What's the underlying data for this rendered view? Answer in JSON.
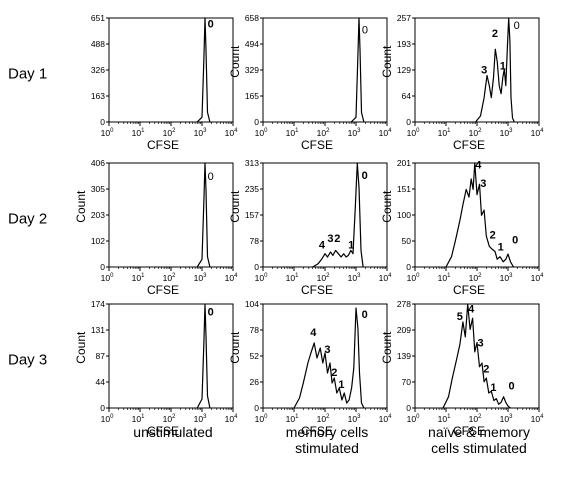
{
  "figure": {
    "row_labels": [
      "Day 1",
      "Day 2",
      "Day 3"
    ],
    "col_labels": [
      [
        "unstimulated"
      ],
      [
        "memory cells",
        "stimulated"
      ],
      [
        "naïve & memory",
        "cells stimulated"
      ]
    ]
  },
  "chart_data": [
    {
      "type": "area",
      "row": 0,
      "col": 0,
      "xlabel": "CFSE",
      "ylabel": "",
      "x_scale": "log",
      "xlim": [
        1,
        10000
      ],
      "x_ticks": [
        [
          "10",
          "0"
        ],
        [
          "10",
          "1"
        ],
        [
          "10",
          "2"
        ],
        [
          "10",
          "3"
        ],
        [
          "10",
          "4"
        ]
      ],
      "ylim": [
        0,
        651
      ],
      "y_ticks": [
        "0",
        "163",
        "326",
        "488",
        "651"
      ],
      "series": [
        {
          "x": [
            700,
            1000,
            1150,
            1250,
            1350,
            1500,
            1800
          ],
          "y": [
            0,
            30,
            400,
            651,
            450,
            60,
            0
          ]
        }
      ],
      "peak_labels": [
        {
          "text": "0",
          "x": 1900,
          "y": 590,
          "bold": true
        }
      ]
    },
    {
      "type": "area",
      "row": 0,
      "col": 1,
      "xlabel": "CFSE",
      "ylabel": "Count",
      "x_scale": "log",
      "xlim": [
        1,
        10000
      ],
      "x_ticks": [
        [
          "10",
          "0"
        ],
        [
          "10",
          "1"
        ],
        [
          "10",
          "2"
        ],
        [
          "10",
          "3"
        ],
        [
          "10",
          "4"
        ]
      ],
      "ylim": [
        0,
        658
      ],
      "y_ticks": [
        "0",
        "165",
        "329",
        "494",
        "658"
      ],
      "series": [
        {
          "x": [
            700,
            1000,
            1150,
            1250,
            1350,
            1500,
            1800
          ],
          "y": [
            0,
            30,
            420,
            658,
            460,
            60,
            0
          ]
        }
      ],
      "peak_labels": [
        {
          "text": "0",
          "x": 1950,
          "y": 560,
          "bold": false
        }
      ]
    },
    {
      "type": "area",
      "row": 0,
      "col": 2,
      "xlabel": "CFSE",
      "ylabel": "Count",
      "x_scale": "log",
      "xlim": [
        1,
        10000
      ],
      "x_ticks": [
        [
          "10",
          "0"
        ],
        [
          "10",
          "1"
        ],
        [
          "10",
          "2"
        ],
        [
          "10",
          "3"
        ],
        [
          "10",
          "4"
        ]
      ],
      "ylim": [
        0,
        257
      ],
      "y_ticks": [
        "0",
        "64",
        "129",
        "193",
        "257"
      ],
      "series": [
        {
          "x": [
            90,
            130,
            170,
            210,
            250,
            290,
            340,
            390,
            450,
            520,
            600,
            680,
            760,
            850,
            950,
            1050,
            1150,
            1250,
            1400,
            1600
          ],
          "y": [
            0,
            15,
            60,
            115,
            90,
            60,
            110,
            180,
            150,
            90,
            70,
            110,
            130,
            90,
            180,
            257,
            200,
            60,
            10,
            0
          ]
        }
      ],
      "peak_labels": [
        {
          "text": "3",
          "x": 170,
          "y": 120,
          "bold": true
        },
        {
          "text": "2",
          "x": 380,
          "y": 210,
          "bold": true
        },
        {
          "text": "1",
          "x": 680,
          "y": 130,
          "bold": true
        },
        {
          "text": "0",
          "x": 1900,
          "y": 230,
          "bold": false
        }
      ]
    },
    {
      "type": "area",
      "row": 1,
      "col": 0,
      "xlabel": "CFSE",
      "ylabel": "Count",
      "x_scale": "log",
      "xlim": [
        1,
        10000
      ],
      "x_ticks": [
        [
          "10",
          "0"
        ],
        [
          "10",
          "1"
        ],
        [
          "10",
          "2"
        ],
        [
          "10",
          "3"
        ],
        [
          "10",
          "4"
        ]
      ],
      "ylim": [
        0,
        406
      ],
      "y_ticks": [
        "0",
        "102",
        "203",
        "305",
        "406"
      ],
      "series": [
        {
          "x": [
            700,
            1000,
            1150,
            1250,
            1350,
            1500,
            1800
          ],
          "y": [
            0,
            30,
            260,
            406,
            300,
            40,
            0
          ]
        }
      ],
      "peak_labels": [
        {
          "text": "0",
          "x": 1900,
          "y": 340,
          "bold": false
        }
      ]
    },
    {
      "type": "area",
      "row": 1,
      "col": 1,
      "xlabel": "CFSE",
      "ylabel": "Count",
      "x_scale": "log",
      "xlim": [
        1,
        10000
      ],
      "x_ticks": [
        [
          "10",
          "0"
        ],
        [
          "10",
          "1"
        ],
        [
          "10",
          "2"
        ],
        [
          "10",
          "3"
        ],
        [
          "10",
          "4"
        ]
      ],
      "ylim": [
        0,
        313
      ],
      "y_ticks": [
        "0",
        "78",
        "157",
        "235",
        "313"
      ],
      "series": [
        {
          "x": [
            40,
            60,
            80,
            100,
            120,
            150,
            180,
            220,
            270,
            330,
            400,
            480,
            570,
            680,
            800,
            950,
            1100,
            1250,
            1450,
            1700
          ],
          "y": [
            0,
            10,
            25,
            40,
            30,
            45,
            35,
            50,
            40,
            30,
            40,
            30,
            35,
            50,
            40,
            180,
            313,
            240,
            50,
            0
          ]
        }
      ],
      "peak_labels": [
        {
          "text": "4",
          "x": 80,
          "y": 55,
          "bold": true
        },
        {
          "text": "3",
          "x": 150,
          "y": 75,
          "bold": true
        },
        {
          "text": "2",
          "x": 250,
          "y": 75,
          "bold": true
        },
        {
          "text": "1",
          "x": 700,
          "y": 55,
          "bold": true
        },
        {
          "text": "0",
          "x": 1900,
          "y": 265,
          "bold": true
        }
      ]
    },
    {
      "type": "area",
      "row": 1,
      "col": 2,
      "xlabel": "CFSE",
      "ylabel": "Count",
      "x_scale": "log",
      "xlim": [
        1,
        10000
      ],
      "x_ticks": [
        [
          "10",
          "0"
        ],
        [
          "10",
          "1"
        ],
        [
          "10",
          "2"
        ],
        [
          "10",
          "3"
        ],
        [
          "10",
          "4"
        ]
      ],
      "ylim": [
        0,
        201
      ],
      "y_ticks": [
        "0",
        "50",
        "100",
        "151",
        "201"
      ],
      "series": [
        {
          "x": [
            10,
            15,
            20,
            28,
            35,
            45,
            55,
            65,
            75,
            85,
            100,
            120,
            140,
            170,
            200,
            250,
            300,
            380,
            450,
            550,
            700,
            850,
            1000,
            1200,
            1500
          ],
          "y": [
            0,
            20,
            50,
            90,
            120,
            150,
            135,
            170,
            150,
            201,
            140,
            160,
            100,
            110,
            60,
            40,
            35,
            30,
            15,
            20,
            10,
            15,
            25,
            10,
            0
          ]
        }
      ],
      "peak_labels": [
        {
          "text": "4",
          "x": 110,
          "y": 190,
          "bold": true
        },
        {
          "text": "3",
          "x": 160,
          "y": 155,
          "bold": true
        },
        {
          "text": "2",
          "x": 320,
          "y": 55,
          "bold": true
        },
        {
          "text": "1",
          "x": 580,
          "y": 32,
          "bold": true
        },
        {
          "text": "0",
          "x": 1700,
          "y": 45,
          "bold": true
        }
      ]
    },
    {
      "type": "area",
      "row": 2,
      "col": 0,
      "xlabel": "CFSE",
      "ylabel": "Count",
      "x_scale": "log",
      "xlim": [
        1,
        10000
      ],
      "x_ticks": [
        [
          "10",
          "0"
        ],
        [
          "10",
          "1"
        ],
        [
          "10",
          "2"
        ],
        [
          "10",
          "3"
        ],
        [
          "10",
          "4"
        ]
      ],
      "ylim": [
        0,
        174
      ],
      "y_ticks": [
        "0",
        "44",
        "87",
        "131",
        "174"
      ],
      "series": [
        {
          "x": [
            700,
            1000,
            1150,
            1250,
            1350,
            1500,
            1800
          ],
          "y": [
            0,
            15,
            110,
            174,
            120,
            20,
            0
          ]
        }
      ],
      "peak_labels": [
        {
          "text": "0",
          "x": 1900,
          "y": 155,
          "bold": true
        }
      ]
    },
    {
      "type": "area",
      "row": 2,
      "col": 1,
      "xlabel": "CFSE",
      "ylabel": "Count",
      "x_scale": "log",
      "xlim": [
        1,
        10000
      ],
      "x_ticks": [
        [
          "10",
          "0"
        ],
        [
          "10",
          "1"
        ],
        [
          "10",
          "2"
        ],
        [
          "10",
          "3"
        ],
        [
          "10",
          "4"
        ]
      ],
      "ylim": [
        0,
        104
      ],
      "y_ticks": [
        "0",
        "26",
        "52",
        "78",
        "104"
      ],
      "series": [
        {
          "x": [
            10,
            15,
            20,
            28,
            35,
            45,
            55,
            70,
            85,
            100,
            120,
            145,
            170,
            200,
            240,
            290,
            350,
            420,
            500,
            600,
            720,
            850,
            1000,
            1150,
            1300,
            1500,
            1800
          ],
          "y": [
            0,
            10,
            25,
            45,
            55,
            65,
            50,
            60,
            45,
            55,
            35,
            45,
            25,
            30,
            15,
            20,
            8,
            15,
            5,
            8,
            20,
            40,
            100,
            80,
            35,
            5,
            0
          ]
        }
      ],
      "peak_labels": [
        {
          "text": "4",
          "x": 42,
          "y": 72,
          "bold": true
        },
        {
          "text": "3",
          "x": 120,
          "y": 55,
          "bold": true
        },
        {
          "text": "2",
          "x": 200,
          "y": 32,
          "bold": true
        },
        {
          "text": "1",
          "x": 340,
          "y": 20,
          "bold": true
        },
        {
          "text": "0",
          "x": 1900,
          "y": 90,
          "bold": true
        }
      ]
    },
    {
      "type": "area",
      "row": 2,
      "col": 2,
      "xlabel": "CFSE",
      "ylabel": "Count",
      "x_scale": "log",
      "xlim": [
        1,
        10000
      ],
      "x_ticks": [
        [
          "10",
          "0"
        ],
        [
          "10",
          "1"
        ],
        [
          "10",
          "2"
        ],
        [
          "10",
          "3"
        ],
        [
          "10",
          "4"
        ]
      ],
      "ylim": [
        0,
        278
      ],
      "y_ticks": [
        "0",
        "70",
        "139",
        "209",
        "278"
      ],
      "series": [
        {
          "x": [
            8,
            12,
            16,
            22,
            28,
            35,
            42,
            50,
            60,
            72,
            85,
            100,
            120,
            145,
            170,
            200,
            240,
            290,
            350,
            420,
            500,
            600,
            720,
            850,
            1000,
            1200
          ],
          "y": [
            0,
            30,
            80,
            130,
            170,
            230,
            190,
            278,
            210,
            240,
            150,
            175,
            110,
            120,
            70,
            80,
            40,
            45,
            20,
            25,
            10,
            15,
            30,
            15,
            5,
            0
          ]
        }
      ],
      "peak_labels": [
        {
          "text": "5",
          "x": 28,
          "y": 235,
          "bold": true
        },
        {
          "text": "4",
          "x": 65,
          "y": 255,
          "bold": true
        },
        {
          "text": "3",
          "x": 130,
          "y": 165,
          "bold": true
        },
        {
          "text": "2",
          "x": 200,
          "y": 95,
          "bold": true
        },
        {
          "text": "1",
          "x": 340,
          "y": 45,
          "bold": true
        },
        {
          "text": "0",
          "x": 1300,
          "y": 50,
          "bold": true
        }
      ]
    }
  ]
}
